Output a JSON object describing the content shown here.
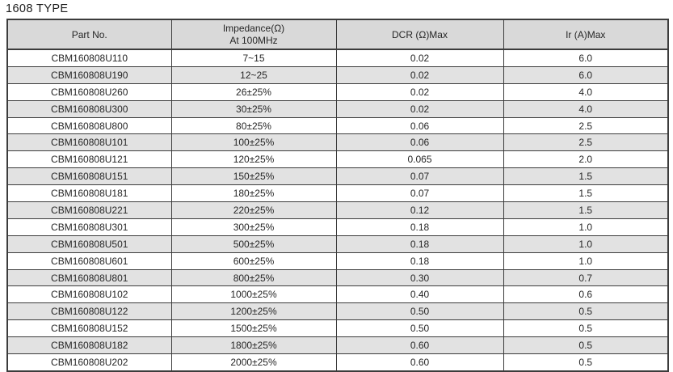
{
  "title": "1608 TYPE",
  "colors": {
    "header_bg": "#d9d9d9",
    "alt_row_bg": "#e2e2e2",
    "border": "#3c3c3c",
    "text": "#262626"
  },
  "table": {
    "headers": {
      "part_no": "Part No.",
      "impedance_line1": "Impedance(Ω)",
      "impedance_line2": "At 100MHz",
      "dcr": "DCR (Ω)Max",
      "ir": "Ir (A)Max"
    },
    "rows": [
      {
        "part_no": "CBM160808U110",
        "impedance": "7~15",
        "dcr": "0.02",
        "ir": "6.0"
      },
      {
        "part_no": "CBM160808U190",
        "impedance": "12~25",
        "dcr": "0.02",
        "ir": "6.0"
      },
      {
        "part_no": "CBM160808U260",
        "impedance": "26±25%",
        "dcr": "0.02",
        "ir": "4.0"
      },
      {
        "part_no": "CBM160808U300",
        "impedance": "30±25%",
        "dcr": "0.02",
        "ir": "4.0"
      },
      {
        "part_no": "CBM160808U800",
        "impedance": "80±25%",
        "dcr": "0.06",
        "ir": "2.5"
      },
      {
        "part_no": "CBM160808U101",
        "impedance": "100±25%",
        "dcr": "0.06",
        "ir": "2.5"
      },
      {
        "part_no": "CBM160808U121",
        "impedance": "120±25%",
        "dcr": "0.065",
        "ir": "2.0"
      },
      {
        "part_no": "CBM160808U151",
        "impedance": "150±25%",
        "dcr": "0.07",
        "ir": "1.5"
      },
      {
        "part_no": "CBM160808U181",
        "impedance": "180±25%",
        "dcr": "0.07",
        "ir": "1.5"
      },
      {
        "part_no": "CBM160808U221",
        "impedance": "220±25%",
        "dcr": "0.12",
        "ir": "1.5"
      },
      {
        "part_no": "CBM160808U301",
        "impedance": "300±25%",
        "dcr": "0.18",
        "ir": "1.0"
      },
      {
        "part_no": "CBM160808U501",
        "impedance": "500±25%",
        "dcr": "0.18",
        "ir": "1.0"
      },
      {
        "part_no": "CBM160808U601",
        "impedance": "600±25%",
        "dcr": "0.18",
        "ir": "1.0"
      },
      {
        "part_no": "CBM160808U801",
        "impedance": "800±25%",
        "dcr": "0.30",
        "ir": "0.7"
      },
      {
        "part_no": "CBM160808U102",
        "impedance": "1000±25%",
        "dcr": "0.40",
        "ir": "0.6"
      },
      {
        "part_no": "CBM160808U122",
        "impedance": "1200±25%",
        "dcr": "0.50",
        "ir": "0.5"
      },
      {
        "part_no": "CBM160808U152",
        "impedance": "1500±25%",
        "dcr": "0.50",
        "ir": "0.5"
      },
      {
        "part_no": "CBM160808U182",
        "impedance": "1800±25%",
        "dcr": "0.60",
        "ir": "0.5"
      },
      {
        "part_no": "CBM160808U202",
        "impedance": "2000±25%",
        "dcr": "0.60",
        "ir": "0.5"
      }
    ]
  }
}
